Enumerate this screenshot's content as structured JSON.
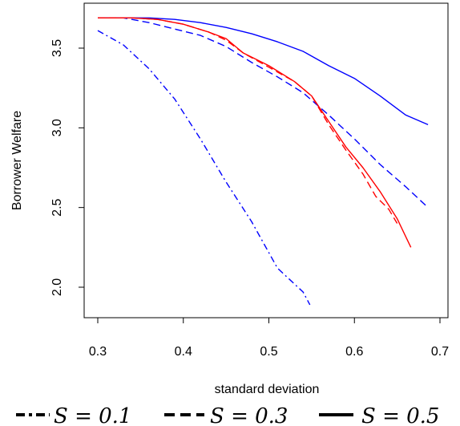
{
  "chart_data": {
    "type": "line",
    "title": "",
    "xlabel": "standard deviation",
    "ylabel": "Borrower Welfare",
    "xlim": [
      0.3,
      0.7
    ],
    "ylim": [
      1.8,
      3.75
    ],
    "xticks": [
      "0.3",
      "0.4",
      "0.5",
      "0.6",
      "0.7"
    ],
    "xtick_values": [
      0.3,
      0.4,
      0.5,
      0.6,
      0.7
    ],
    "yticks": [
      "2.0",
      "2.5",
      "3.0",
      "3.5"
    ],
    "ytick_values": [
      2.0,
      2.5,
      3.0,
      3.5
    ],
    "grid": false,
    "legend_position": "bottom",
    "legend": [
      {
        "label": "S = 0.1",
        "dash": "dash-dot"
      },
      {
        "label": "S = 0.3",
        "dash": "dashed"
      },
      {
        "label": "S = 0.5",
        "dash": "solid"
      }
    ],
    "series": [
      {
        "color": "#0000ff",
        "dash": "dash-dot",
        "x": [
          0.3,
          0.33,
          0.36,
          0.39,
          0.42,
          0.45,
          0.48,
          0.51,
          0.54,
          0.548
        ],
        "y": [
          3.61,
          3.52,
          3.37,
          3.18,
          2.93,
          2.66,
          2.41,
          2.12,
          1.97,
          1.89
        ]
      },
      {
        "color": "#0000ff",
        "dash": "dashed",
        "x": [
          0.3,
          0.33,
          0.36,
          0.39,
          0.42,
          0.45,
          0.48,
          0.51,
          0.54,
          0.57,
          0.6,
          0.63,
          0.66,
          0.686
        ],
        "y": [
          3.69,
          3.69,
          3.66,
          3.62,
          3.58,
          3.51,
          3.41,
          3.32,
          3.22,
          3.08,
          2.93,
          2.77,
          2.63,
          2.5
        ]
      },
      {
        "color": "#0000ff",
        "dash": "solid",
        "x": [
          0.3,
          0.33,
          0.36,
          0.39,
          0.42,
          0.45,
          0.48,
          0.51,
          0.54,
          0.57,
          0.6,
          0.63,
          0.66,
          0.686
        ],
        "y": [
          3.69,
          3.69,
          3.69,
          3.68,
          3.66,
          3.63,
          3.59,
          3.54,
          3.48,
          3.39,
          3.31,
          3.2,
          3.08,
          3.02
        ]
      },
      {
        "color": "#ff0000",
        "dash": "dashed",
        "x": [
          0.3,
          0.34,
          0.37,
          0.4,
          0.43,
          0.45,
          0.47,
          0.5,
          0.53,
          0.55,
          0.57,
          0.59,
          0.61,
          0.625,
          0.64,
          0.65
        ],
        "y": [
          3.69,
          3.69,
          3.68,
          3.65,
          3.6,
          3.55,
          3.47,
          3.38,
          3.29,
          3.2,
          3.02,
          2.86,
          2.71,
          2.57,
          2.49,
          2.4
        ]
      },
      {
        "color": "#ff0000",
        "dash": "solid",
        "x": [
          0.3,
          0.34,
          0.37,
          0.4,
          0.43,
          0.45,
          0.47,
          0.5,
          0.53,
          0.55,
          0.57,
          0.59,
          0.61,
          0.63,
          0.65,
          0.666
        ],
        "y": [
          3.69,
          3.69,
          3.68,
          3.65,
          3.6,
          3.56,
          3.47,
          3.39,
          3.29,
          3.2,
          3.04,
          2.88,
          2.75,
          2.6,
          2.43,
          2.25
        ]
      }
    ]
  }
}
